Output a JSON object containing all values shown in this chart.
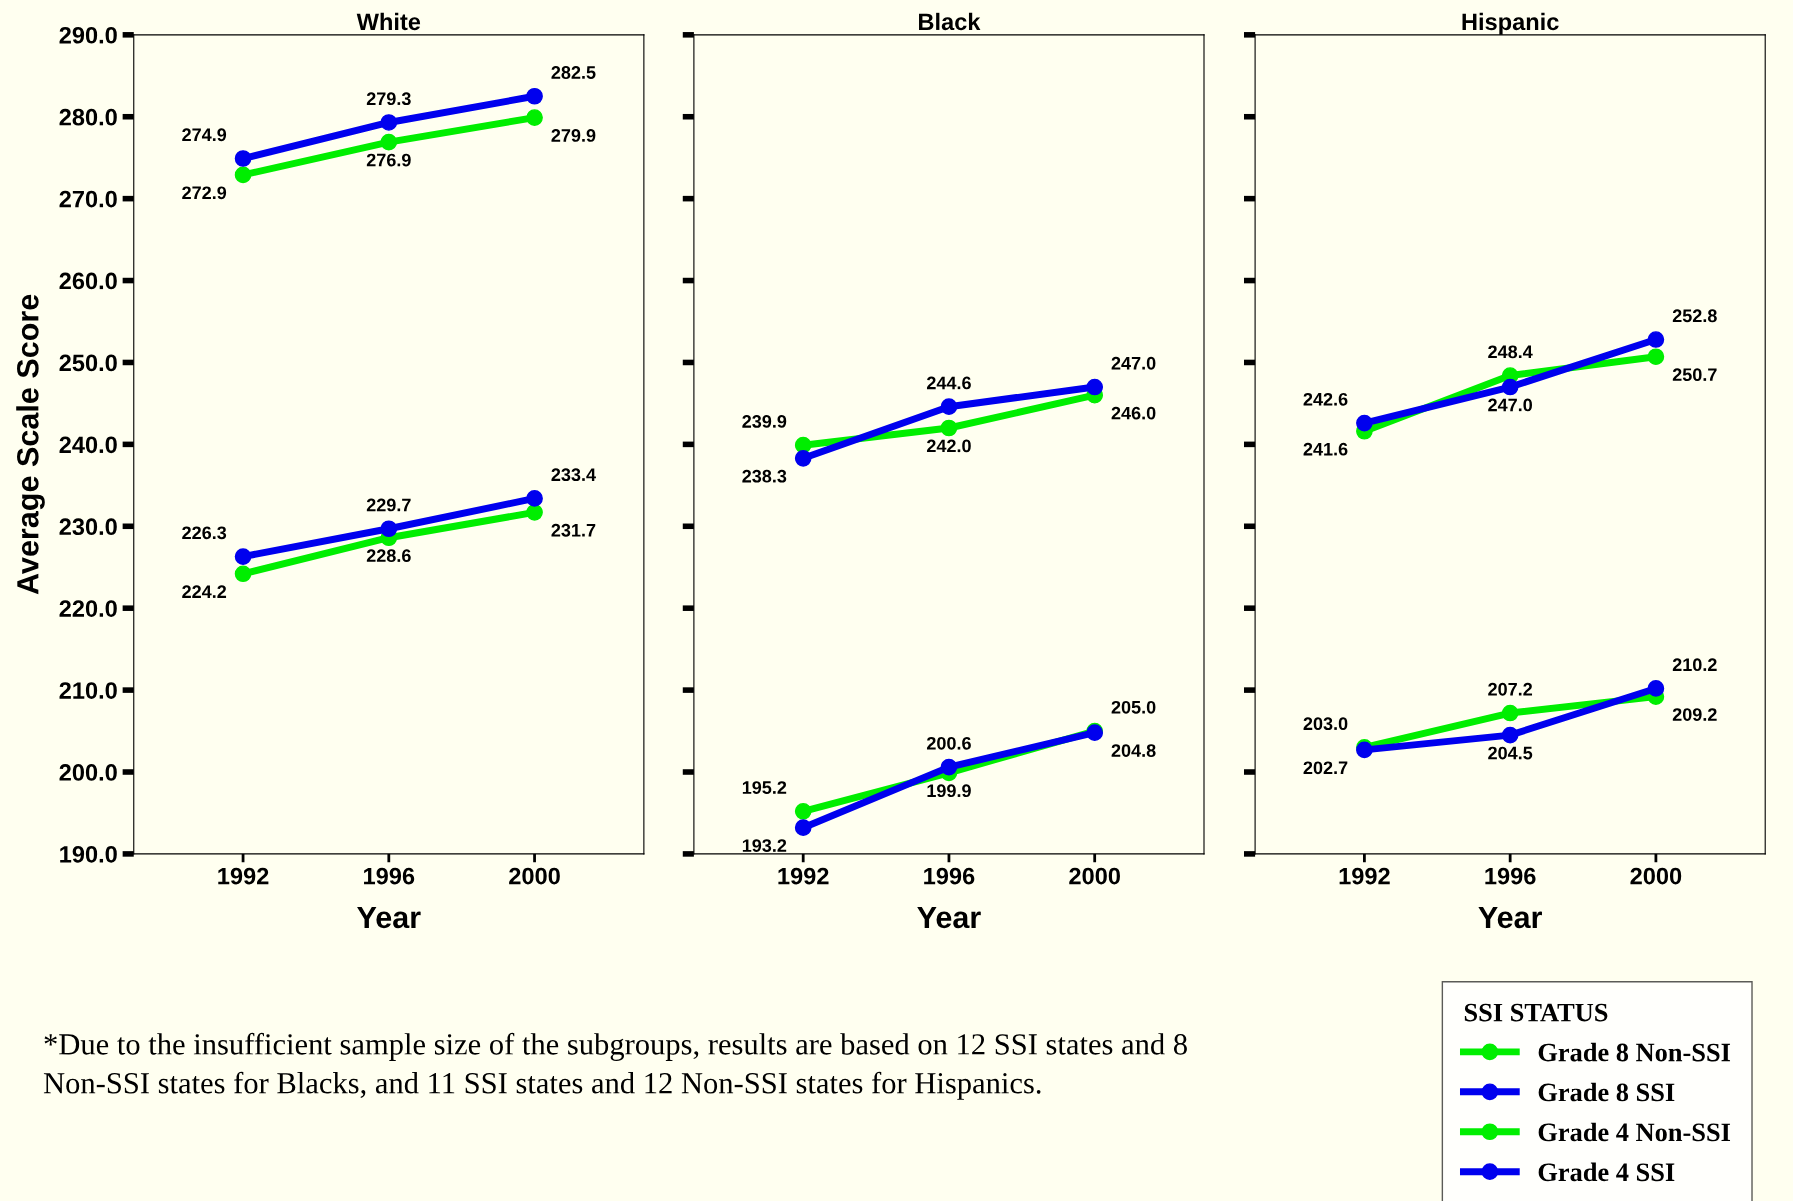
{
  "chart_data": [
    {
      "type": "line",
      "title": "White",
      "xlabel": "Year",
      "ylabel": "Average Scale Score",
      "x": [
        1992,
        1996,
        2000
      ],
      "xlim": [
        1989,
        2003
      ],
      "xticks": [
        1992,
        1996,
        2000
      ],
      "ylim": [
        190,
        290
      ],
      "yticks": [
        {
          "value": 190,
          "label": "190.0"
        },
        {
          "value": 200,
          "label": "200.0"
        },
        {
          "value": 210,
          "label": "210.0"
        },
        {
          "value": 220,
          "label": "220.0"
        },
        {
          "value": 230,
          "label": "230.0"
        },
        {
          "value": 240,
          "label": "240.0"
        },
        {
          "value": 250,
          "label": "250.0"
        },
        {
          "value": 260,
          "label": "260.0"
        },
        {
          "value": 270,
          "label": "270.0"
        },
        {
          "value": 280,
          "label": "280.0"
        },
        {
          "value": 290,
          "label": "290.0"
        }
      ],
      "marker": "circle",
      "line_style": "solid",
      "series": [
        {
          "color": "#00ee00",
          "values": [
            272.9,
            276.9,
            279.9
          ],
          "value_labels": [
            "272.9",
            "276.9",
            "279.9"
          ]
        },
        {
          "color": "#0000ee",
          "values": [
            274.9,
            279.3,
            282.5
          ],
          "value_labels": [
            "274.9",
            "279.3",
            "282.5"
          ]
        },
        {
          "color": "#00ee00",
          "values": [
            224.2,
            228.6,
            231.7
          ],
          "value_labels": [
            "224.2",
            "228.6",
            "231.7"
          ]
        },
        {
          "color": "#0000ee",
          "values": [
            226.3,
            229.7,
            233.4
          ],
          "value_labels": [
            "226.3",
            "229.7",
            "233.4"
          ]
        }
      ],
      "annotations": [
        "*Due to the insufficient sample size of the subgroups, results are based on 12 SSI states and 8\nNon-SSI states for Blacks, and 11 SSI states and 12 Non-SSI states for Hispanics."
      ]
    },
    {
      "type": "line",
      "title": "Black",
      "xlabel": "Year",
      "x": [
        1992,
        1996,
        2000
      ],
      "xlim": [
        1989,
        2003
      ],
      "xticks": [
        1992,
        1996,
        2000
      ],
      "ylim": [
        190,
        290
      ],
      "yticks": [
        {
          "value": 190,
          "label": null
        },
        {
          "value": 200,
          "label": null
        },
        {
          "value": 210,
          "label": null
        },
        {
          "value": 220,
          "label": null
        },
        {
          "value": 230,
          "label": null
        },
        {
          "value": 240,
          "label": null
        },
        {
          "value": 250,
          "label": null
        },
        {
          "value": 260,
          "label": null
        },
        {
          "value": 270,
          "label": null
        },
        {
          "value": 280,
          "label": null
        },
        {
          "value": 290,
          "label": null
        }
      ],
      "tick_labels": "x",
      "marker": "circle",
      "line_style": "solid",
      "series": [
        {
          "color": "#00ee00",
          "values": [
            239.9,
            242.0,
            246.0
          ],
          "value_labels": [
            "239.9",
            "242.0",
            "246.0"
          ]
        },
        {
          "color": "#0000ee",
          "values": [
            238.3,
            244.6,
            247.0
          ],
          "value_labels": [
            "238.3",
            "244.6",
            "247.0"
          ]
        },
        {
          "color": "#00ee00",
          "values": [
            195.2,
            199.9,
            205.0
          ],
          "value_labels": [
            "195.2",
            "199.9",
            "205.0"
          ]
        },
        {
          "color": "#0000ee",
          "values": [
            193.2,
            200.6,
            204.8
          ],
          "value_labels": [
            "193.2",
            "200.6",
            "204.8"
          ]
        }
      ]
    },
    {
      "type": "line",
      "title": "Hispanic",
      "xlabel": "Year",
      "x": [
        1992,
        1996,
        2000
      ],
      "xlim": [
        1989,
        2003
      ],
      "xticks": [
        1992,
        1996,
        2000
      ],
      "ylim": [
        190,
        290
      ],
      "yticks": [
        {
          "value": 190,
          "label": null
        },
        {
          "value": 200,
          "label": null
        },
        {
          "value": 210,
          "label": null
        },
        {
          "value": 220,
          "label": null
        },
        {
          "value": 230,
          "label": null
        },
        {
          "value": 240,
          "label": null
        },
        {
          "value": 250,
          "label": null
        },
        {
          "value": 260,
          "label": null
        },
        {
          "value": 270,
          "label": null
        },
        {
          "value": 280,
          "label": null
        },
        {
          "value": 290,
          "label": null
        }
      ],
      "tick_labels": "x",
      "marker": "circle",
      "line_style": "solid",
      "legend": "bottom right",
      "legend_title": "SSI STATUS",
      "series": [
        {
          "name": "Grade 8 Non-SSI",
          "color": "#00ee00",
          "values": [
            241.6,
            248.4,
            250.7
          ],
          "value_labels": [
            "241.6",
            "248.4",
            "250.7"
          ]
        },
        {
          "name": "Grade 8 SSI",
          "color": "#0000ee",
          "values": [
            242.6,
            247.0,
            252.8
          ],
          "value_labels": [
            "242.6",
            "247.0",
            "252.8"
          ]
        },
        {
          "name": "Grade 4 Non-SSI",
          "color": "#00ee00",
          "values": [
            203.0,
            207.2,
            209.2
          ],
          "value_labels": [
            "203.0",
            "207.2",
            "209.2"
          ]
        },
        {
          "name": "Grade 4 SSI",
          "color": "#0000ee",
          "values": [
            202.7,
            204.5,
            210.2
          ],
          "value_labels": [
            "202.7",
            "204.5",
            "210.2"
          ]
        }
      ]
    }
  ]
}
